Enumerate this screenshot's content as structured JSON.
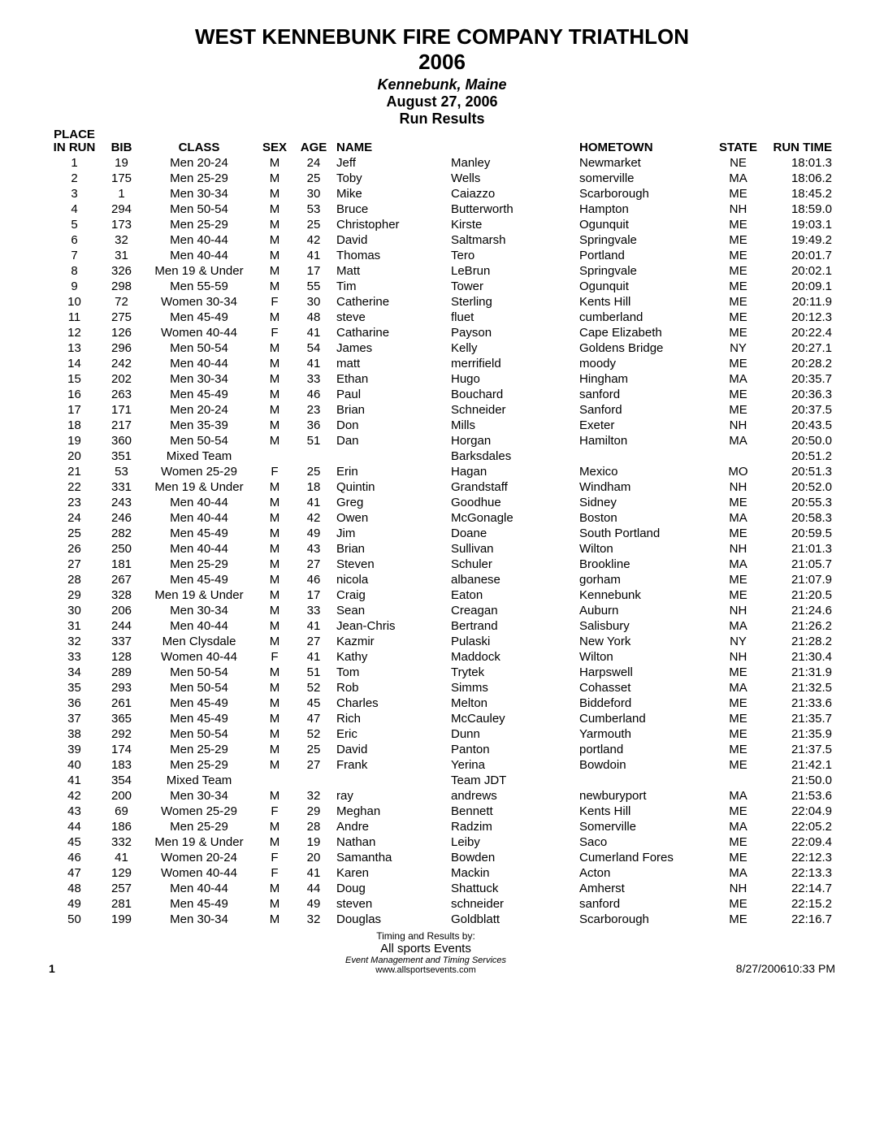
{
  "header": {
    "title1": "WEST KENNEBUNK FIRE COMPANY TRIATHLON",
    "title2": "2006",
    "location": "Kennebunk, Maine",
    "date": "August 27, 2006",
    "subtitle": "Run Results"
  },
  "columns": {
    "place_l1": "PLACE",
    "place_l2": "IN RUN",
    "bib": "BIB",
    "class": "CLASS",
    "sex": "SEX",
    "age": "AGE",
    "name": "NAME",
    "hometown": "HOMETOWN",
    "state": "STATE",
    "runtime": "RUN TIME"
  },
  "rows": [
    {
      "place": "1",
      "bib": "19",
      "class": "Men 20-24",
      "sex": "M",
      "age": "24",
      "first": "Jeff",
      "last": "Manley",
      "home": "Newmarket",
      "state": "NE",
      "time": "18:01.3"
    },
    {
      "place": "2",
      "bib": "175",
      "class": "Men 25-29",
      "sex": "M",
      "age": "25",
      "first": "Toby",
      "last": "Wells",
      "home": "somerville",
      "state": "MA",
      "time": "18:06.2"
    },
    {
      "place": "3",
      "bib": "1",
      "class": "Men 30-34",
      "sex": "M",
      "age": "30",
      "first": "Mike",
      "last": "Caiazzo",
      "home": "Scarborough",
      "state": "ME",
      "time": "18:45.2"
    },
    {
      "place": "4",
      "bib": "294",
      "class": "Men 50-54",
      "sex": "M",
      "age": "53",
      "first": "Bruce",
      "last": "Butterworth",
      "home": "Hampton",
      "state": "NH",
      "time": "18:59.0"
    },
    {
      "place": "5",
      "bib": "173",
      "class": "Men 25-29",
      "sex": "M",
      "age": "25",
      "first": "Christopher",
      "last": "Kirste",
      "home": "Ogunquit",
      "state": "ME",
      "time": "19:03.1"
    },
    {
      "place": "6",
      "bib": "32",
      "class": "Men 40-44",
      "sex": "M",
      "age": "42",
      "first": "David",
      "last": "Saltmarsh",
      "home": "Springvale",
      "state": "ME",
      "time": "19:49.2"
    },
    {
      "place": "7",
      "bib": "31",
      "class": "Men 40-44",
      "sex": "M",
      "age": "41",
      "first": "Thomas",
      "last": "Tero",
      "home": "Portland",
      "state": "ME",
      "time": "20:01.7"
    },
    {
      "place": "8",
      "bib": "326",
      "class": "Men 19 & Under",
      "sex": "M",
      "age": "17",
      "first": "Matt",
      "last": "LeBrun",
      "home": "Springvale",
      "state": "ME",
      "time": "20:02.1"
    },
    {
      "place": "9",
      "bib": "298",
      "class": "Men 55-59",
      "sex": "M",
      "age": "55",
      "first": "Tim",
      "last": "Tower",
      "home": "Ogunquit",
      "state": "ME",
      "time": "20:09.1"
    },
    {
      "place": "10",
      "bib": "72",
      "class": "Women 30-34",
      "sex": "F",
      "age": "30",
      "first": "Catherine",
      "last": "Sterling",
      "home": "Kents Hill",
      "state": "ME",
      "time": "20:11.9"
    },
    {
      "place": "11",
      "bib": "275",
      "class": "Men 45-49",
      "sex": "M",
      "age": "48",
      "first": "steve",
      "last": "fluet",
      "home": "cumberland",
      "state": "ME",
      "time": "20:12.3"
    },
    {
      "place": "12",
      "bib": "126",
      "class": "Women 40-44",
      "sex": "F",
      "age": "41",
      "first": "Catharine",
      "last": "Payson",
      "home": "Cape Elizabeth",
      "state": "ME",
      "time": "20:22.4"
    },
    {
      "place": "13",
      "bib": "296",
      "class": "Men 50-54",
      "sex": "M",
      "age": "54",
      "first": "James",
      "last": "Kelly",
      "home": "Goldens Bridge",
      "state": "NY",
      "time": "20:27.1"
    },
    {
      "place": "14",
      "bib": "242",
      "class": "Men 40-44",
      "sex": "M",
      "age": "41",
      "first": "matt",
      "last": "merrifield",
      "home": "moody",
      "state": "ME",
      "time": "20:28.2"
    },
    {
      "place": "15",
      "bib": "202",
      "class": "Men 30-34",
      "sex": "M",
      "age": "33",
      "first": "Ethan",
      "last": "Hugo",
      "home": "Hingham",
      "state": "MA",
      "time": "20:35.7"
    },
    {
      "place": "16",
      "bib": "263",
      "class": "Men 45-49",
      "sex": "M",
      "age": "46",
      "first": "Paul",
      "last": "Bouchard",
      "home": "sanford",
      "state": "ME",
      "time": "20:36.3"
    },
    {
      "place": "17",
      "bib": "171",
      "class": "Men 20-24",
      "sex": "M",
      "age": "23",
      "first": "Brian",
      "last": "Schneider",
      "home": "Sanford",
      "state": "ME",
      "time": "20:37.5"
    },
    {
      "place": "18",
      "bib": "217",
      "class": "Men 35-39",
      "sex": "M",
      "age": "36",
      "first": "Don",
      "last": "Mills",
      "home": "Exeter",
      "state": "NH",
      "time": "20:43.5"
    },
    {
      "place": "19",
      "bib": "360",
      "class": "Men 50-54",
      "sex": "M",
      "age": "51",
      "first": "Dan",
      "last": "Horgan",
      "home": "Hamilton",
      "state": "MA",
      "time": "20:50.0"
    },
    {
      "place": "20",
      "bib": "351",
      "class": "Mixed Team",
      "sex": "",
      "age": "",
      "first": "",
      "last": "Barksdales",
      "home": "",
      "state": "",
      "time": "20:51.2"
    },
    {
      "place": "21",
      "bib": "53",
      "class": "Women 25-29",
      "sex": "F",
      "age": "25",
      "first": "Erin",
      "last": "Hagan",
      "home": "Mexico",
      "state": "MO",
      "time": "20:51.3"
    },
    {
      "place": "22",
      "bib": "331",
      "class": "Men 19 & Under",
      "sex": "M",
      "age": "18",
      "first": "Quintin",
      "last": "Grandstaff",
      "home": "Windham",
      "state": "NH",
      "time": "20:52.0"
    },
    {
      "place": "23",
      "bib": "243",
      "class": "Men 40-44",
      "sex": "M",
      "age": "41",
      "first": "Greg",
      "last": "Goodhue",
      "home": "Sidney",
      "state": "ME",
      "time": "20:55.3"
    },
    {
      "place": "24",
      "bib": "246",
      "class": "Men 40-44",
      "sex": "M",
      "age": "42",
      "first": "Owen",
      "last": "McGonagle",
      "home": "Boston",
      "state": "MA",
      "time": "20:58.3"
    },
    {
      "place": "25",
      "bib": "282",
      "class": "Men 45-49",
      "sex": "M",
      "age": "49",
      "first": "Jim",
      "last": "Doane",
      "home": "South Portland",
      "state": "ME",
      "time": "20:59.5"
    },
    {
      "place": "26",
      "bib": "250",
      "class": "Men 40-44",
      "sex": "M",
      "age": "43",
      "first": "Brian",
      "last": "Sullivan",
      "home": "Wilton",
      "state": "NH",
      "time": "21:01.3"
    },
    {
      "place": "27",
      "bib": "181",
      "class": "Men 25-29",
      "sex": "M",
      "age": "27",
      "first": "Steven",
      "last": "Schuler",
      "home": "Brookline",
      "state": "MA",
      "time": "21:05.7"
    },
    {
      "place": "28",
      "bib": "267",
      "class": "Men 45-49",
      "sex": "M",
      "age": "46",
      "first": "nicola",
      "last": "albanese",
      "home": "gorham",
      "state": "ME",
      "time": "21:07.9"
    },
    {
      "place": "29",
      "bib": "328",
      "class": "Men 19 & Under",
      "sex": "M",
      "age": "17",
      "first": "Craig",
      "last": "Eaton",
      "home": "Kennebunk",
      "state": "ME",
      "time": "21:20.5"
    },
    {
      "place": "30",
      "bib": "206",
      "class": "Men 30-34",
      "sex": "M",
      "age": "33",
      "first": "Sean",
      "last": "Creagan",
      "home": "Auburn",
      "state": "NH",
      "time": "21:24.6"
    },
    {
      "place": "31",
      "bib": "244",
      "class": "Men 40-44",
      "sex": "M",
      "age": "41",
      "first": "Jean-Chris",
      "last": "Bertrand",
      "home": "Salisbury",
      "state": "MA",
      "time": "21:26.2"
    },
    {
      "place": "32",
      "bib": "337",
      "class": "Men Clysdale",
      "sex": "M",
      "age": "27",
      "first": "Kazmir",
      "last": "Pulaski",
      "home": "New York",
      "state": "NY",
      "time": "21:28.2"
    },
    {
      "place": "33",
      "bib": "128",
      "class": "Women 40-44",
      "sex": "F",
      "age": "41",
      "first": "Kathy",
      "last": "Maddock",
      "home": "Wilton",
      "state": "NH",
      "time": "21:30.4"
    },
    {
      "place": "34",
      "bib": "289",
      "class": "Men 50-54",
      "sex": "M",
      "age": "51",
      "first": "Tom",
      "last": "Trytek",
      "home": "Harpswell",
      "state": "ME",
      "time": "21:31.9"
    },
    {
      "place": "35",
      "bib": "293",
      "class": "Men 50-54",
      "sex": "M",
      "age": "52",
      "first": "Rob",
      "last": "Simms",
      "home": "Cohasset",
      "state": "MA",
      "time": "21:32.5"
    },
    {
      "place": "36",
      "bib": "261",
      "class": "Men 45-49",
      "sex": "M",
      "age": "45",
      "first": "Charles",
      "last": "Melton",
      "home": "Biddeford",
      "state": "ME",
      "time": "21:33.6"
    },
    {
      "place": "37",
      "bib": "365",
      "class": "Men 45-49",
      "sex": "M",
      "age": "47",
      "first": "Rich",
      "last": "McCauley",
      "home": "Cumberland",
      "state": "ME",
      "time": "21:35.7"
    },
    {
      "place": "38",
      "bib": "292",
      "class": "Men 50-54",
      "sex": "M",
      "age": "52",
      "first": "Eric",
      "last": "Dunn",
      "home": "Yarmouth",
      "state": "ME",
      "time": "21:35.9"
    },
    {
      "place": "39",
      "bib": "174",
      "class": "Men 25-29",
      "sex": "M",
      "age": "25",
      "first": "David",
      "last": "Panton",
      "home": "portland",
      "state": "ME",
      "time": "21:37.5"
    },
    {
      "place": "40",
      "bib": "183",
      "class": "Men 25-29",
      "sex": "M",
      "age": "27",
      "first": "Frank",
      "last": "Yerina",
      "home": "Bowdoin",
      "state": "ME",
      "time": "21:42.1"
    },
    {
      "place": "41",
      "bib": "354",
      "class": "Mixed Team",
      "sex": "",
      "age": "",
      "first": "",
      "last": "Team JDT",
      "home": "",
      "state": "",
      "time": "21:50.0"
    },
    {
      "place": "42",
      "bib": "200",
      "class": "Men 30-34",
      "sex": "M",
      "age": "32",
      "first": "ray",
      "last": "andrews",
      "home": "newburyport",
      "state": "MA",
      "time": "21:53.6"
    },
    {
      "place": "43",
      "bib": "69",
      "class": "Women 25-29",
      "sex": "F",
      "age": "29",
      "first": "Meghan",
      "last": "Bennett",
      "home": "Kents Hill",
      "state": "ME",
      "time": "22:04.9"
    },
    {
      "place": "44",
      "bib": "186",
      "class": "Men 25-29",
      "sex": "M",
      "age": "28",
      "first": "Andre",
      "last": "Radzim",
      "home": "Somerville",
      "state": "MA",
      "time": "22:05.2"
    },
    {
      "place": "45",
      "bib": "332",
      "class": "Men 19 & Under",
      "sex": "M",
      "age": "19",
      "first": "Nathan",
      "last": "Leiby",
      "home": "Saco",
      "state": "ME",
      "time": "22:09.4"
    },
    {
      "place": "46",
      "bib": "41",
      "class": "Women 20-24",
      "sex": "F",
      "age": "20",
      "first": "Samantha",
      "last": "Bowden",
      "home": "Cumerland Fores",
      "state": "ME",
      "time": "22:12.3"
    },
    {
      "place": "47",
      "bib": "129",
      "class": "Women 40-44",
      "sex": "F",
      "age": "41",
      "first": "Karen",
      "last": "Mackin",
      "home": "Acton",
      "state": "MA",
      "time": "22:13.3"
    },
    {
      "place": "48",
      "bib": "257",
      "class": "Men 40-44",
      "sex": "M",
      "age": "44",
      "first": "Doug",
      "last": "Shattuck",
      "home": "Amherst",
      "state": "NH",
      "time": "22:14.7"
    },
    {
      "place": "49",
      "bib": "281",
      "class": "Men 45-49",
      "sex": "M",
      "age": "49",
      "first": "steven",
      "last": "schneider",
      "home": "sanford",
      "state": "ME",
      "time": "22:15.2"
    },
    {
      "place": "50",
      "bib": "199",
      "class": "Men 30-34",
      "sex": "M",
      "age": "32",
      "first": "Douglas",
      "last": "Goldblatt",
      "home": "Scarborough",
      "state": "ME",
      "time": "22:16.7"
    }
  ],
  "footer": {
    "page": "1",
    "credit_l1": "Timing and Results by:",
    "credit_l2": "All sports Events",
    "credit_l3": "Event Management and Timing Services",
    "credit_l4": "www.allsportsevents.com",
    "timestamp": "8/27/200610:33 PM"
  }
}
